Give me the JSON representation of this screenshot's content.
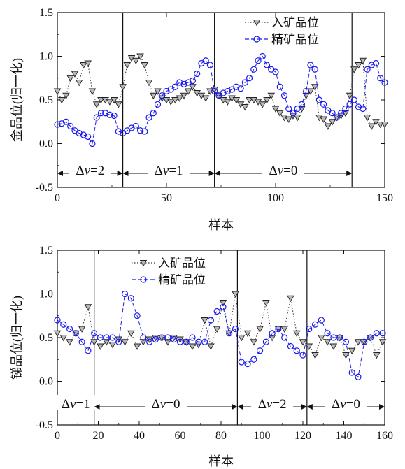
{
  "chart_data": [
    {
      "type": "line",
      "xlabel": "样本",
      "ylabel": "金品位(归一化)",
      "xlim": [
        0,
        150
      ],
      "ylim": [
        -0.5,
        1.5
      ],
      "xticks": [
        "0",
        "50",
        "100",
        "150"
      ],
      "yticks": [
        "-0.5",
        "0.0",
        "0.5",
        "1.0",
        "1.5"
      ],
      "legend_position": "top-right",
      "dividers": [
        30,
        72,
        135
      ],
      "segments": [
        {
          "label_prefix": "Δ",
          "label_var": "v",
          "label_value": "=2",
          "from": 0,
          "to": 30
        },
        {
          "label_prefix": "Δ",
          "label_var": "v",
          "label_value": "=1",
          "from": 30,
          "to": 72
        },
        {
          "label_prefix": "Δ",
          "label_var": "v",
          "label_value": "=0",
          "from": 72,
          "to": 135
        }
      ],
      "series": [
        {
          "name": "入矿品位",
          "style": "dotted-triangle",
          "color": "#333333",
          "x": [
            0,
            2,
            4,
            6,
            8,
            10,
            12,
            14,
            16,
            18,
            20,
            22,
            24,
            26,
            28,
            30,
            32,
            34,
            36,
            38,
            40,
            42,
            44,
            46,
            48,
            50,
            52,
            54,
            56,
            58,
            60,
            62,
            64,
            66,
            68,
            70,
            72,
            74,
            76,
            78,
            80,
            82,
            84,
            86,
            88,
            90,
            92,
            94,
            96,
            98,
            100,
            102,
            104,
            106,
            108,
            110,
            112,
            114,
            116,
            118,
            120,
            122,
            124,
            126,
            128,
            130,
            132,
            134,
            136,
            138,
            140,
            142,
            144,
            146,
            148,
            150
          ],
          "values": [
            0.6,
            0.5,
            0.55,
            0.75,
            0.8,
            0.7,
            0.9,
            0.92,
            0.6,
            0.45,
            0.5,
            0.5,
            0.48,
            0.5,
            0.45,
            0.65,
            0.9,
            0.98,
            0.95,
            1.0,
            0.9,
            0.7,
            0.55,
            0.6,
            0.52,
            0.5,
            0.48,
            0.5,
            0.52,
            0.55,
            0.6,
            0.65,
            0.58,
            0.55,
            0.52,
            0.6,
            0.62,
            0.55,
            0.5,
            0.48,
            0.52,
            0.5,
            0.45,
            0.42,
            0.5,
            0.5,
            0.48,
            0.45,
            0.5,
            0.55,
            0.4,
            0.35,
            0.3,
            0.28,
            0.32,
            0.3,
            0.4,
            0.55,
            0.6,
            0.65,
            0.3,
            0.28,
            0.2,
            0.25,
            0.3,
            0.32,
            0.35,
            0.55,
            0.85,
            0.9,
            0.95,
            0.3,
            0.2,
            0.25,
            0.22,
            0.22
          ]
        },
        {
          "name": "精矿品位",
          "style": "dashed-circle",
          "color": "#1a1aee",
          "x": [
            0,
            2,
            4,
            6,
            8,
            10,
            12,
            14,
            16,
            18,
            20,
            22,
            24,
            26,
            28,
            30,
            32,
            34,
            36,
            38,
            40,
            42,
            44,
            46,
            48,
            50,
            52,
            54,
            56,
            58,
            60,
            62,
            64,
            66,
            68,
            70,
            72,
            74,
            76,
            78,
            80,
            82,
            84,
            86,
            88,
            90,
            92,
            94,
            96,
            98,
            100,
            102,
            104,
            106,
            108,
            110,
            112,
            114,
            116,
            118,
            120,
            122,
            124,
            126,
            128,
            130,
            132,
            134,
            136,
            138,
            140,
            142,
            144,
            146,
            148,
            150
          ],
          "values": [
            0.22,
            0.23,
            0.25,
            0.2,
            0.15,
            0.12,
            0.1,
            0.08,
            0.0,
            0.3,
            0.35,
            0.35,
            0.33,
            0.32,
            0.14,
            0.12,
            0.15,
            0.18,
            0.2,
            0.15,
            0.14,
            0.3,
            0.35,
            0.45,
            0.55,
            0.6,
            0.62,
            0.65,
            0.7,
            0.68,
            0.7,
            0.72,
            0.8,
            0.92,
            0.95,
            0.9,
            0.6,
            0.55,
            0.58,
            0.6,
            0.62,
            0.65,
            0.63,
            0.7,
            0.75,
            0.85,
            0.95,
            1.0,
            0.9,
            0.85,
            0.82,
            0.65,
            0.55,
            0.4,
            0.35,
            0.4,
            0.45,
            0.6,
            0.9,
            0.85,
            0.5,
            0.45,
            0.38,
            0.35,
            0.3,
            0.35,
            0.4,
            0.45,
            0.5,
            0.42,
            0.4,
            0.85,
            0.9,
            0.92,
            0.75,
            0.7
          ]
        }
      ]
    },
    {
      "type": "line",
      "xlabel": "样本",
      "ylabel": "锑品位(归一化)",
      "xlim": [
        0,
        160
      ],
      "ylim": [
        -0.5,
        1.5
      ],
      "xticks": [
        "0",
        "20",
        "40",
        "60",
        "80",
        "100",
        "120",
        "140",
        "160"
      ],
      "yticks": [
        "-0.5",
        "0.0",
        "0.5",
        "1.0",
        "1.5"
      ],
      "legend_position": "top-center",
      "dividers": [
        18,
        88,
        122
      ],
      "segments": [
        {
          "label_prefix": "Δ",
          "label_var": "v",
          "label_value": "=1",
          "from": 0,
          "to": 18
        },
        {
          "label_prefix": "Δ",
          "label_var": "v",
          "label_value": "=0",
          "from": 18,
          "to": 88
        },
        {
          "label_prefix": "Δ",
          "label_var": "v",
          "label_value": "=2",
          "from": 88,
          "to": 122
        },
        {
          "label_prefix": "Δ",
          "label_var": "v",
          "label_value": "=0",
          "from": 122,
          "to": 160
        }
      ],
      "series": [
        {
          "name": "入矿品位",
          "style": "dotted-triangle",
          "color": "#333333",
          "x": [
            0,
            3,
            6,
            9,
            12,
            15,
            18,
            21,
            24,
            27,
            30,
            33,
            36,
            39,
            42,
            45,
            48,
            51,
            54,
            57,
            60,
            63,
            66,
            69,
            72,
            75,
            78,
            81,
            84,
            87,
            90,
            93,
            96,
            99,
            102,
            105,
            108,
            111,
            114,
            117,
            120,
            123,
            126,
            129,
            132,
            135,
            138,
            141,
            144,
            147,
            150,
            153,
            156,
            159
          ],
          "values": [
            0.55,
            0.5,
            0.45,
            0.55,
            0.6,
            0.85,
            0.45,
            0.4,
            0.45,
            0.42,
            0.48,
            0.45,
            0.55,
            0.4,
            0.45,
            0.48,
            0.5,
            0.5,
            0.45,
            0.5,
            0.48,
            0.45,
            0.4,
            0.42,
            0.7,
            0.4,
            0.6,
            0.9,
            0.55,
            1.0,
            0.5,
            0.55,
            0.45,
            0.6,
            0.9,
            0.5,
            0.6,
            0.6,
            0.95,
            0.55,
            0.45,
            0.4,
            0.3,
            0.5,
            0.45,
            0.4,
            0.5,
            0.3,
            0.35,
            0.45,
            0.45,
            0.5,
            0.3,
            0.45
          ]
        },
        {
          "name": "精矿品位",
          "style": "dashed-circle",
          "color": "#1a1aee",
          "x": [
            0,
            3,
            6,
            9,
            12,
            15,
            18,
            21,
            24,
            27,
            30,
            33,
            36,
            39,
            42,
            45,
            48,
            51,
            54,
            57,
            60,
            63,
            66,
            69,
            72,
            75,
            78,
            81,
            84,
            87,
            90,
            93,
            96,
            99,
            102,
            105,
            108,
            111,
            114,
            117,
            120,
            123,
            126,
            129,
            132,
            135,
            138,
            141,
            144,
            147,
            150,
            153,
            156,
            159
          ],
          "values": [
            0.7,
            0.65,
            0.6,
            0.55,
            0.45,
            0.35,
            0.55,
            0.5,
            0.5,
            0.5,
            0.45,
            1.0,
            0.95,
            0.75,
            0.5,
            0.45,
            0.48,
            0.5,
            0.5,
            0.48,
            0.45,
            0.45,
            0.5,
            0.45,
            0.45,
            0.7,
            0.8,
            0.85,
            0.55,
            0.6,
            0.22,
            0.2,
            0.25,
            0.35,
            0.45,
            0.55,
            0.6,
            0.5,
            0.4,
            0.35,
            0.3,
            0.6,
            0.65,
            0.7,
            0.55,
            0.5,
            0.5,
            0.45,
            0.1,
            0.05,
            0.45,
            0.5,
            0.55,
            0.55
          ]
        }
      ]
    }
  ]
}
